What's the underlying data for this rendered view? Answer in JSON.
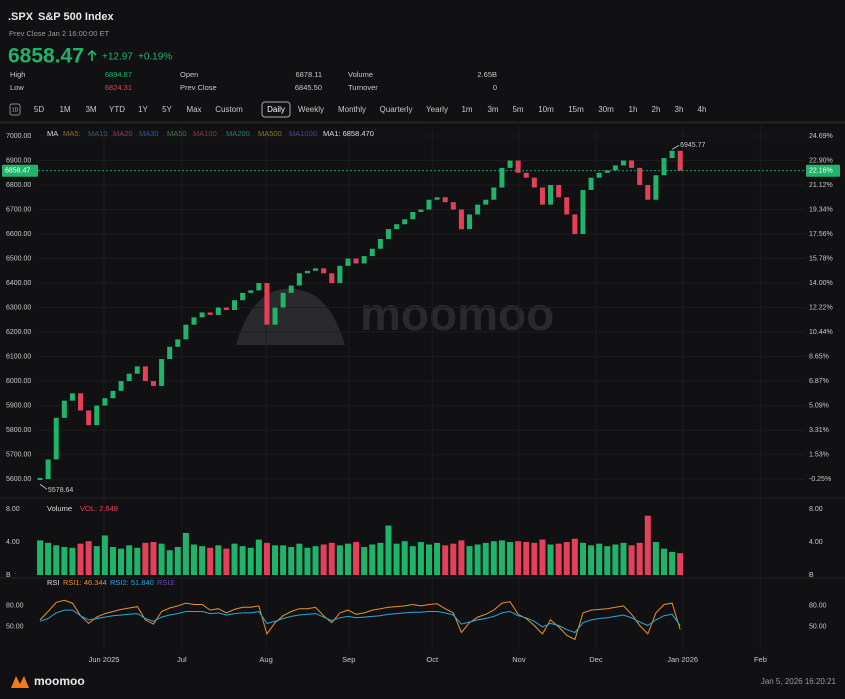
{
  "header": {
    "symbol": ".SPX",
    "name": "S&P 500 Index",
    "status": "Prev Close Jan 2 16:00:00 ET",
    "price": "6858.47",
    "change": "+12.97",
    "change_pct": "+0.19%"
  },
  "stats": [
    {
      "label": "High",
      "value": "6894.87"
    },
    {
      "label": "Open",
      "value": "6878.11"
    },
    {
      "label": "Volume",
      "value": "2.65B"
    },
    {
      "label": "Low",
      "value": "6824.31"
    },
    {
      "label": "Prev Close",
      "value": "6845.50"
    },
    {
      "label": "Turnover",
      "value": "0"
    }
  ],
  "toolbar": {
    "periods": [
      "5D",
      "1M",
      "3M",
      "YTD",
      "1Y",
      "5Y",
      "Max",
      "Custom"
    ],
    "intervals": [
      "Daily",
      "Weekly",
      "Monthly",
      "Quarterly",
      "Yearly",
      "1m",
      "3m",
      "5m",
      "10m",
      "15m",
      "30m",
      "1h",
      "2h",
      "3h",
      "4h"
    ],
    "selected_interval": 0
  },
  "watermark": "moomoo",
  "footer": {
    "brand": "moomoo",
    "timestamp": "Jan 5, 2026 16:20:21"
  },
  "chart_data": [
    {
      "type": "candlestick",
      "legend_title": "MA",
      "ma_legend": [
        {
          "text": "MA5:",
          "color": "#8a6a2e"
        },
        {
          "text": "MA10",
          "color": "#2f5f86"
        },
        {
          "text": "MA20",
          "color": "#8a3f63"
        },
        {
          "text": "MA30",
          "color": "#2f5a8a"
        },
        {
          "text": "MA50",
          "color": "#3f7a45"
        },
        {
          "text": "MA100",
          "color": "#8a3a3a"
        },
        {
          "text": "MA200",
          "color": "#2f7a78"
        },
        {
          "text": "MA500",
          "color": "#8a7a2a"
        },
        {
          "text": "MA1000",
          "color": "#5a3f8a"
        }
      ],
      "ma_value_label": "MA1: 6858.470",
      "up_color": "#1fb46a",
      "down_color": "#e5405a",
      "values": [
        5600,
        5680,
        5850,
        5920,
        5950,
        5880,
        5820,
        5900,
        5930,
        5960,
        6000,
        6030,
        6060,
        6000,
        5980,
        6090,
        6140,
        6170,
        6230,
        6260,
        6280,
        6270,
        6300,
        6290,
        6330,
        6360,
        6370,
        6400,
        6230,
        6300,
        6360,
        6390,
        6440,
        6450,
        6460,
        6440,
        6400,
        6470,
        6500,
        6480,
        6510,
        6540,
        6580,
        6620,
        6640,
        6660,
        6690,
        6700,
        6740,
        6750,
        6730,
        6700,
        6620,
        6680,
        6720,
        6740,
        6790,
        6870,
        6900,
        6850,
        6830,
        6790,
        6720,
        6800,
        6750,
        6680,
        6600,
        6780,
        6830,
        6850,
        6860,
        6880,
        6900,
        6870,
        6800,
        6740,
        6840,
        6910,
        6940,
        6858.47
      ],
      "annotations": [
        {
          "x": 78,
          "value": 6945.77,
          "label": "6945.77"
        },
        {
          "x": 0,
          "value": 5578.64,
          "label": "5578.64"
        }
      ],
      "last_price": {
        "value": 6858.47,
        "label": "6858.47",
        "pct_label": "22.16%"
      },
      "xlim": [
        -0.25,
        94.4
      ],
      "xticks": [
        {
          "value": 7.9,
          "label": "Jun 2025"
        },
        {
          "value": 17.5,
          "label": "Jul"
        },
        {
          "value": 27.9,
          "label": "Aug"
        },
        {
          "value": 38.1,
          "label": "Sep"
        },
        {
          "value": 48.4,
          "label": "Oct"
        },
        {
          "value": 59.1,
          "label": "Nov"
        },
        {
          "value": 68.6,
          "label": "Dec"
        },
        {
          "value": 79.3,
          "label": "Jan 2026"
        },
        {
          "value": 88.9,
          "label": "Feb"
        }
      ],
      "ylim": [
        5535,
        7045
      ],
      "yticks": [
        {
          "value": 5600,
          "label": "5600.00"
        },
        {
          "value": 5700,
          "label": "5700.00"
        },
        {
          "value": 5800,
          "label": "5800.00"
        },
        {
          "value": 5900,
          "label": "5900.00"
        },
        {
          "value": 6000,
          "label": "6000.00"
        },
        {
          "value": 6100,
          "label": "6100.00"
        },
        {
          "value": 6200,
          "label": "6200.00"
        },
        {
          "value": 6300,
          "label": "6300.00"
        },
        {
          "value": 6400,
          "label": "6400.00"
        },
        {
          "value": 6500,
          "label": "6500.00"
        },
        {
          "value": 6600,
          "label": "6600.00"
        },
        {
          "value": 6700,
          "label": "6700.00"
        },
        {
          "value": 6800,
          "label": "6800.00"
        },
        {
          "value": 6900,
          "label": "6900.00"
        },
        {
          "value": 7000,
          "label": "7000.00"
        }
      ],
      "y2lim": [
        -1.41,
        25.49
      ],
      "y2ticks": [
        {
          "value": -0.25,
          "label": "-0.25%"
        },
        {
          "value": 1.53,
          "label": "1.53%"
        },
        {
          "value": 3.31,
          "label": "3.31%"
        },
        {
          "value": 5.09,
          "label": "5.09%"
        },
        {
          "value": 6.87,
          "label": "6.87%"
        },
        {
          "value": 8.65,
          "label": "8.65%"
        },
        {
          "value": 10.44,
          "label": "10.44%"
        },
        {
          "value": 12.22,
          "label": "12.22%"
        },
        {
          "value": 14.0,
          "label": "14.00%"
        },
        {
          "value": 15.78,
          "label": "15.78%"
        },
        {
          "value": 17.56,
          "label": "17.56%"
        },
        {
          "value": 19.34,
          "label": "19.34%"
        },
        {
          "value": 21.12,
          "label": "21.12%"
        },
        {
          "value": 22.9,
          "label": "22.90%"
        },
        {
          "value": 24.69,
          "label": "24.69%"
        }
      ],
      "grid": true
    },
    {
      "type": "bar",
      "title": "Volume",
      "legend_label": "VOL: 2.648",
      "values": [
        4.2,
        3.9,
        3.6,
        3.4,
        3.3,
        3.8,
        4.1,
        3.5,
        4.8,
        3.4,
        3.2,
        3.6,
        3.3,
        3.9,
        4.0,
        3.8,
        3.0,
        3.4,
        5.1,
        3.7,
        3.5,
        3.3,
        3.6,
        3.2,
        3.8,
        3.5,
        3.3,
        4.3,
        3.9,
        3.6,
        3.6,
        3.4,
        3.8,
        3.3,
        3.5,
        3.7,
        3.9,
        3.6,
        3.8,
        4.0,
        3.4,
        3.7,
        3.9,
        6.0,
        3.8,
        4.1,
        3.5,
        4.0,
        3.7,
        3.9,
        3.6,
        3.8,
        4.2,
        3.5,
        3.7,
        3.9,
        4.1,
        4.2,
        4.0,
        4.1,
        4.0,
        3.9,
        4.3,
        3.7,
        3.8,
        4.0,
        4.4,
        3.9,
        3.6,
        3.8,
        3.5,
        3.7,
        3.9,
        3.6,
        3.9,
        7.2,
        4.0,
        3.2,
        2.8,
        2.648
      ],
      "ylim": [
        0,
        9.1
      ],
      "yticks": [
        {
          "value": 0,
          "label": "B"
        },
        {
          "value": 4,
          "label": "4.00"
        },
        {
          "value": 8,
          "label": "8.00"
        }
      ]
    },
    {
      "type": "line",
      "title": "RSI",
      "series": [
        {
          "name": "RSI1: 46.344",
          "color": "#e8912d",
          "values": [
            60,
            72,
            85,
            88,
            84,
            66,
            55,
            64,
            69,
            72,
            75,
            77,
            79,
            60,
            54,
            72,
            77,
            80,
            84,
            82,
            82,
            74,
            76,
            70,
            75,
            78,
            78,
            80,
            40,
            56,
            66,
            72,
            76,
            76,
            78,
            66,
            56,
            70,
            74,
            68,
            70,
            74,
            76,
            78,
            79,
            80,
            82,
            80,
            82,
            83,
            76,
            70,
            42,
            56,
            64,
            68,
            74,
            84,
            86,
            68,
            62,
            52,
            40,
            60,
            50,
            38,
            32,
            70,
            74,
            75,
            76,
            78,
            80,
            68,
            52,
            40,
            70,
            82,
            84,
            46.344
          ]
        },
        {
          "name": "RSI2: 51.840",
          "color": "#2aa8d8",
          "values": [
            58,
            62,
            70,
            74,
            74,
            66,
            60,
            62,
            64,
            66,
            67,
            68,
            69,
            62,
            58,
            64,
            67,
            69,
            72,
            72,
            72,
            69,
            70,
            67,
            69,
            70,
            70,
            72,
            55,
            58,
            62,
            65,
            67,
            68,
            69,
            64,
            59,
            63,
            65,
            63,
            64,
            65,
            66,
            68,
            69,
            70,
            71,
            71,
            72,
            72,
            70,
            67,
            54,
            57,
            60,
            62,
            65,
            70,
            72,
            66,
            63,
            58,
            50,
            55,
            52,
            46,
            42,
            56,
            60,
            62,
            63,
            65,
            67,
            63,
            57,
            52,
            60,
            66,
            68,
            51.84
          ]
        },
        {
          "name": "RSI3:",
          "color": "#6b4ab8",
          "values": []
        }
      ],
      "ylim": [
        17,
        117
      ],
      "yticks": [
        {
          "value": 50,
          "label": "50.00"
        },
        {
          "value": 80,
          "label": "80.00"
        }
      ]
    }
  ]
}
